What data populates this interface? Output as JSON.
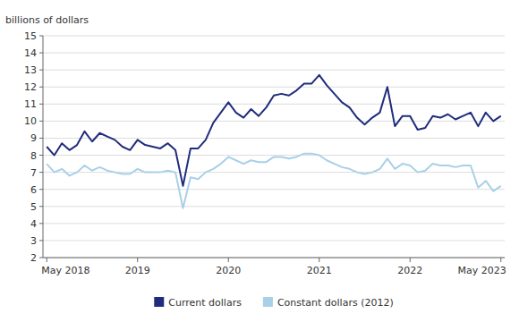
{
  "chart_data": {
    "type": "line",
    "ylabel": "billions of dollars",
    "categories": [
      "May 2018",
      null,
      null,
      null,
      null,
      null,
      null,
      null,
      null,
      null,
      null,
      null,
      "2019",
      null,
      null,
      null,
      null,
      null,
      null,
      null,
      null,
      null,
      null,
      null,
      "2020",
      null,
      null,
      null,
      null,
      null,
      null,
      null,
      null,
      null,
      null,
      null,
      "2021",
      null,
      null,
      null,
      null,
      null,
      null,
      null,
      null,
      null,
      null,
      null,
      "2022",
      null,
      null,
      null,
      null,
      null,
      null,
      null,
      null,
      null,
      null,
      null,
      "May 2023"
    ],
    "series": [
      {
        "name": "Current dollars",
        "color": "#1f2d7b",
        "values": [
          8.5,
          8.0,
          8.7,
          8.3,
          8.6,
          9.4,
          8.8,
          9.3,
          9.1,
          8.9,
          8.5,
          8.3,
          8.9,
          8.6,
          8.5,
          8.4,
          8.7,
          8.3,
          6.2,
          8.4,
          8.4,
          8.9,
          9.9,
          10.5,
          11.1,
          10.5,
          10.2,
          10.7,
          10.3,
          10.8,
          11.5,
          11.6,
          11.5,
          11.8,
          12.2,
          12.2,
          12.7,
          12.1,
          11.6,
          11.1,
          10.8,
          10.2,
          9.8,
          10.2,
          10.5,
          12.0,
          9.7,
          10.3,
          10.3,
          9.5,
          9.6,
          10.3,
          10.2,
          10.4,
          10.1,
          10.3,
          10.5,
          9.7,
          10.5,
          10.0,
          10.3
        ]
      },
      {
        "name": "Constant dollars (2012)",
        "color": "#a8d0e8",
        "values": [
          7.5,
          7.0,
          7.2,
          6.8,
          7.0,
          7.4,
          7.1,
          7.3,
          7.1,
          7.0,
          6.9,
          6.9,
          7.2,
          7.0,
          7.0,
          7.0,
          7.1,
          7.0,
          4.9,
          6.7,
          6.6,
          7.0,
          7.2,
          7.5,
          7.9,
          7.7,
          7.5,
          7.7,
          7.6,
          7.6,
          7.9,
          7.9,
          7.8,
          7.9,
          8.1,
          8.1,
          8.0,
          7.7,
          7.5,
          7.3,
          7.2,
          7.0,
          6.9,
          7.0,
          7.2,
          7.8,
          7.2,
          7.5,
          7.4,
          7.0,
          7.1,
          7.5,
          7.4,
          7.4,
          7.3,
          7.4,
          7.4,
          6.1,
          6.5,
          5.9,
          6.2
        ]
      }
    ],
    "ylim": [
      2,
      15
    ],
    "yticks": [
      2,
      3,
      4,
      5,
      6,
      7,
      8,
      9,
      10,
      11,
      12,
      13,
      14,
      15
    ],
    "grid": true,
    "legend": "bottom"
  }
}
